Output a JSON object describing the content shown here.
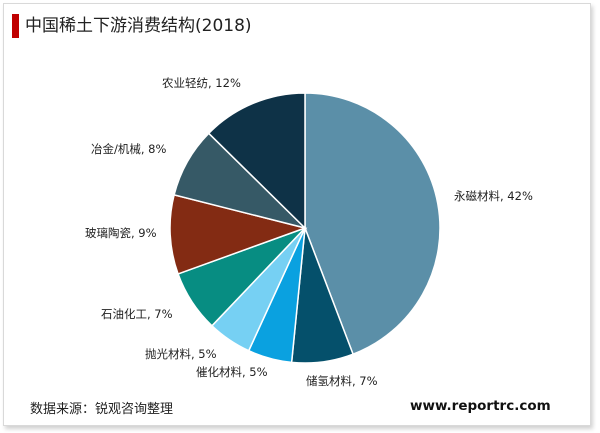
{
  "title": "中国稀土下游消费结构(2018)",
  "source": "数据来源：锐观咨询整理",
  "website": "www.reportrc.com",
  "colors": {
    "accent": "#c00000",
    "border": "#d9d9d9"
  },
  "chart_data": {
    "type": "pie",
    "title": "中国稀土下游消费结构(2018)",
    "unit": "%",
    "slices": [
      {
        "label": "永磁材料",
        "value": 42,
        "display": "永磁材料, 42%",
        "color": "#5b8fa8"
      },
      {
        "label": "储氢材料",
        "value": 7,
        "display": "储氢材料, 7%",
        "color": "#05506b"
      },
      {
        "label": "催化材料",
        "value": 5,
        "display": "催化材料, 5%",
        "color": "#0aa1e0"
      },
      {
        "label": "抛光材料",
        "value": 5,
        "display": "抛光材料, 5%",
        "color": "#76d0f3"
      },
      {
        "label": "石油化工",
        "value": 7,
        "display": "石油化工, 7%",
        "color": "#078d82"
      },
      {
        "label": "玻璃陶瓷",
        "value": 9,
        "display": "玻璃陶瓷, 9%",
        "color": "#832b13"
      },
      {
        "label": "冶金/机械",
        "value": 8,
        "display": "冶金/机械, 8%",
        "color": "#365966"
      },
      {
        "label": "农业轻纺",
        "value": 12,
        "display": "农业轻纺, 12%",
        "color": "#0e3247"
      }
    ]
  }
}
